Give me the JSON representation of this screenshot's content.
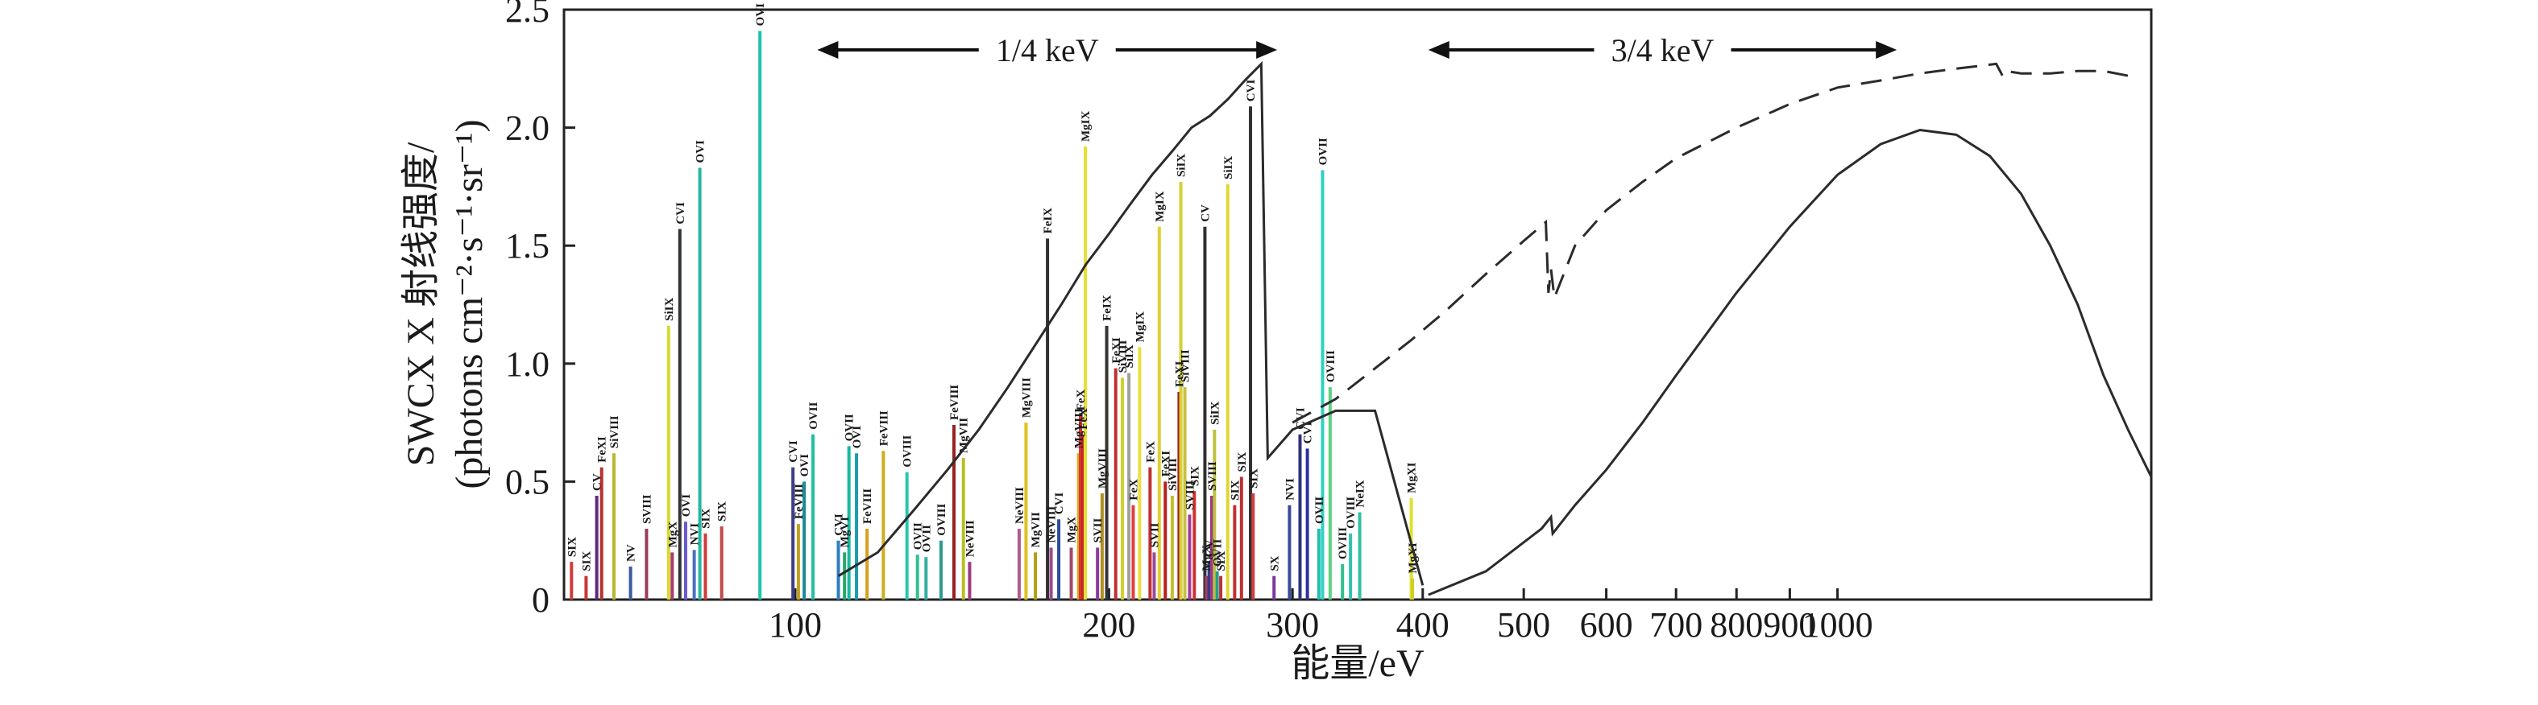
{
  "chart_data": {
    "type": "line",
    "xlabel": "能量/eV",
    "ylabel_line1": "SWCX X 射线强度/",
    "ylabel_line2": "(photons cm⁻²·s⁻¹·sr⁻¹)",
    "x_scale": "log",
    "xlim": [
      60,
      2000
    ],
    "ylim": [
      0,
      2.5
    ],
    "x_ticks": [
      100,
      200,
      300,
      400,
      500,
      600,
      700,
      800,
      900,
      1000
    ],
    "x_tick_labels": [
      "100",
      "200",
      "300",
      "400",
      "500",
      "600",
      "700",
      "800",
      "900",
      "1000"
    ],
    "y_ticks": [
      0,
      0.5,
      1.0,
      1.5,
      2.0,
      2.5
    ],
    "y_tick_labels": [
      "0",
      "0.5",
      "1.0",
      "1.5",
      "2.0",
      "2.5"
    ],
    "bands": [
      {
        "label": "1/4 keV",
        "range": [
          105,
          290
        ]
      },
      {
        "label": "3/4 keV",
        "range": [
          405,
          1140
        ]
      }
    ],
    "curves": [
      {
        "style": "solid",
        "points": [
          [
            110,
            0.1
          ],
          [
            120,
            0.2
          ],
          [
            130,
            0.38
          ],
          [
            140,
            0.55
          ],
          [
            150,
            0.72
          ],
          [
            160,
            0.9
          ],
          [
            170,
            1.08
          ],
          [
            180,
            1.25
          ],
          [
            190,
            1.42
          ],
          [
            200,
            1.55
          ],
          [
            210,
            1.68
          ],
          [
            220,
            1.8
          ],
          [
            230,
            1.9
          ],
          [
            240,
            2.0
          ],
          [
            250,
            2.05
          ],
          [
            260,
            2.12
          ],
          [
            270,
            2.2
          ],
          [
            280,
            2.27
          ],
          [
            284,
            0.6
          ],
          [
            300,
            0.72
          ],
          [
            330,
            0.8
          ],
          [
            360,
            0.8
          ],
          [
            400,
            0.06
          ]
        ]
      },
      {
        "style": "solid",
        "points": [
          [
            405,
            0.02
          ],
          [
            460,
            0.12
          ],
          [
            520,
            0.3
          ],
          [
            531,
            0.35
          ],
          [
            533,
            0.28
          ],
          [
            560,
            0.4
          ],
          [
            600,
            0.55
          ],
          [
            650,
            0.75
          ],
          [
            700,
            0.95
          ],
          [
            800,
            1.3
          ],
          [
            900,
            1.58
          ],
          [
            1000,
            1.8
          ],
          [
            1100,
            1.93
          ],
          [
            1200,
            1.99
          ],
          [
            1300,
            1.97
          ],
          [
            1400,
            1.88
          ],
          [
            1500,
            1.72
          ],
          [
            1600,
            1.5
          ],
          [
            1700,
            1.25
          ],
          [
            1800,
            0.95
          ],
          [
            1900,
            0.72
          ],
          [
            2000,
            0.52
          ]
        ]
      },
      {
        "style": "dashed",
        "points": [
          [
            300,
            0.75
          ],
          [
            330,
            0.85
          ],
          [
            360,
            0.98
          ],
          [
            390,
            1.1
          ],
          [
            420,
            1.22
          ],
          [
            460,
            1.38
          ],
          [
            500,
            1.52
          ],
          [
            525,
            1.6
          ],
          [
            528,
            1.3
          ],
          [
            531,
            1.4
          ],
          [
            535,
            1.28
          ],
          [
            560,
            1.5
          ],
          [
            600,
            1.65
          ],
          [
            650,
            1.77
          ],
          [
            700,
            1.87
          ],
          [
            800,
            2.0
          ],
          [
            900,
            2.1
          ],
          [
            1000,
            2.17
          ],
          [
            1100,
            2.2
          ],
          [
            1200,
            2.23
          ],
          [
            1300,
            2.25
          ],
          [
            1420,
            2.27
          ],
          [
            1440,
            2.22
          ],
          [
            1450,
            2.24
          ],
          [
            1500,
            2.23
          ],
          [
            1600,
            2.23
          ],
          [
            1700,
            2.24
          ],
          [
            1800,
            2.24
          ],
          [
            1900,
            2.22
          ]
        ]
      }
    ],
    "lines": [
      {
        "label": "SIX",
        "x": 61.0,
        "y": 0.16,
        "color": "#d43a3a"
      },
      {
        "label": "SIX",
        "x": 63.0,
        "y": 0.1,
        "color": "#cc3333"
      },
      {
        "label": "CV",
        "x": 64.5,
        "y": 0.44,
        "color": "#5a2c7c"
      },
      {
        "label": "FeXI",
        "x": 65.2,
        "y": 0.56,
        "color": "#b83030"
      },
      {
        "label": "SiVIII",
        "x": 67.0,
        "y": 0.62,
        "color": "#b8b830"
      },
      {
        "label": "NV",
        "x": 69.5,
        "y": 0.14,
        "color": "#3a5a9c"
      },
      {
        "label": "SVIII",
        "x": 72.0,
        "y": 0.3,
        "color": "#9c3a5c"
      },
      {
        "label": "SiIX",
        "x": 75.6,
        "y": 1.16,
        "color": "#d8d830"
      },
      {
        "label": "MgX",
        "x": 76.2,
        "y": 0.2,
        "color": "#a63c6c"
      },
      {
        "label": "CVI",
        "x": 77.5,
        "y": 1.57,
        "color": "#333333"
      },
      {
        "label": "OVI",
        "x": 78.5,
        "y": 0.33,
        "color": "#6a5acd"
      },
      {
        "label": "NVI",
        "x": 80.0,
        "y": 0.21,
        "color": "#4b6fc1"
      },
      {
        "label": "OVI",
        "x": 81.0,
        "y": 1.83,
        "color": "#22b8a0"
      },
      {
        "label": "SIX",
        "x": 82.0,
        "y": 0.28,
        "color": "#d03a3a"
      },
      {
        "label": "SIX",
        "x": 85.0,
        "y": 0.31,
        "color": "#c24a4a"
      },
      {
        "label": "OVI",
        "x": 92.5,
        "y": 2.41,
        "color": "#1dc4a8"
      },
      {
        "label": "CVI",
        "x": 99.5,
        "y": 0.56,
        "color": "#3d3d8a"
      },
      {
        "label": "FeVIII",
        "x": 100.7,
        "y": 0.32,
        "color": "#c0a020"
      },
      {
        "label": "OVI",
        "x": 102.0,
        "y": 0.5,
        "color": "#1a8a9a"
      },
      {
        "label": "OVII",
        "x": 104.0,
        "y": 0.7,
        "color": "#20c0a0"
      },
      {
        "label": "CVI",
        "x": 110.0,
        "y": 0.25,
        "color": "#2d7dc2"
      },
      {
        "label": "MgVI",
        "x": 111.5,
        "y": 0.2,
        "color": "#2da66a"
      },
      {
        "label": "OVII",
        "x": 112.6,
        "y": 0.65,
        "color": "#18b8a0"
      },
      {
        "label": "OVI",
        "x": 114.5,
        "y": 0.62,
        "color": "#1a9cb0"
      },
      {
        "label": "FeVIII",
        "x": 117.2,
        "y": 0.3,
        "color": "#d8a020"
      },
      {
        "label": "FeVIII",
        "x": 121.5,
        "y": 0.63,
        "color": "#c8b020"
      },
      {
        "label": "OVIII",
        "x": 128.0,
        "y": 0.54,
        "color": "#26c6b0"
      },
      {
        "label": "OVII",
        "x": 131.0,
        "y": 0.19,
        "color": "#30c090"
      },
      {
        "label": "OVII",
        "x": 133.5,
        "y": 0.18,
        "color": "#30b0a0"
      },
      {
        "label": "OVIII",
        "x": 138.0,
        "y": 0.25,
        "color": "#2a9a90"
      },
      {
        "label": "FeVIII",
        "x": 142.0,
        "y": 0.74,
        "color": "#9a2020"
      },
      {
        "label": "MgVII",
        "x": 145.0,
        "y": 0.6,
        "color": "#b8c020"
      },
      {
        "label": "NeVIII",
        "x": 147.0,
        "y": 0.16,
        "color": "#a03a80"
      },
      {
        "label": "NeVIII",
        "x": 164.0,
        "y": 0.3,
        "color": "#b05a90"
      },
      {
        "label": "MgVIII",
        "x": 166.5,
        "y": 0.75,
        "color": "#e0c020"
      },
      {
        "label": "MgVII",
        "x": 170.0,
        "y": 0.2,
        "color": "#b0a010"
      },
      {
        "label": "FeIX",
        "x": 174.6,
        "y": 1.53,
        "color": "#303030"
      },
      {
        "label": "NeVIII",
        "x": 176.0,
        "y": 0.22,
        "color": "#9a4a8a"
      },
      {
        "label": "CVI",
        "x": 179.0,
        "y": 0.34,
        "color": "#2c4c9c"
      },
      {
        "label": "MgX",
        "x": 184.0,
        "y": 0.22,
        "color": "#a04a6a"
      },
      {
        "label": "MgVIII",
        "x": 187.0,
        "y": 0.62,
        "color": "#d0b020"
      },
      {
        "label": "FeX",
        "x": 187.8,
        "y": 0.78,
        "color": "#e03030"
      },
      {
        "label": "FeX",
        "x": 188.8,
        "y": 0.7,
        "color": "#c02828"
      },
      {
        "label": "MgIX",
        "x": 189.8,
        "y": 1.92,
        "color": "#e8e030"
      },
      {
        "label": "SVII",
        "x": 195.0,
        "y": 0.22,
        "color": "#8a3a9a"
      },
      {
        "label": "MgVIII",
        "x": 197.0,
        "y": 0.45,
        "color": "#b09020"
      },
      {
        "label": "FeIX",
        "x": 199.0,
        "y": 1.16,
        "color": "#333333"
      },
      {
        "label": "FeXI",
        "x": 203.0,
        "y": 0.98,
        "color": "#c03030"
      },
      {
        "label": "SiVIII",
        "x": 206.0,
        "y": 0.94,
        "color": "#d0d030"
      },
      {
        "label": "SiIX",
        "x": 209.0,
        "y": 0.96,
        "color": "#a0a0a0"
      },
      {
        "label": "FeX",
        "x": 211.0,
        "y": 0.4,
        "color": "#e04040"
      },
      {
        "label": "MgIX",
        "x": 214.0,
        "y": 1.07,
        "color": "#e8e040"
      },
      {
        "label": "FeX",
        "x": 219.0,
        "y": 0.56,
        "color": "#c03030"
      },
      {
        "label": "SVII",
        "x": 221.0,
        "y": 0.2,
        "color": "#9a4a9a"
      },
      {
        "label": "MgIX",
        "x": 223.5,
        "y": 1.58,
        "color": "#e0d030"
      },
      {
        "label": "FeXI",
        "x": 226.5,
        "y": 0.5,
        "color": "#b82020"
      },
      {
        "label": "SiVIII",
        "x": 230.0,
        "y": 0.44,
        "color": "#c0c030"
      },
      {
        "label": "FeXI",
        "x": 233.5,
        "y": 0.88,
        "color": "#a02020"
      },
      {
        "label": "SiIX",
        "x": 234.4,
        "y": 1.77,
        "color": "#d8d030"
      },
      {
        "label": "SiVIII",
        "x": 236.5,
        "y": 0.9,
        "color": "#c8c040"
      },
      {
        "label": "SVIII",
        "x": 239.0,
        "y": 0.36,
        "color": "#a03a9a"
      },
      {
        "label": "SIX",
        "x": 241.5,
        "y": 0.46,
        "color": "#d03030"
      },
      {
        "label": "CV",
        "x": 247.2,
        "y": 1.58,
        "color": "#303030"
      },
      {
        "label": "MgX",
        "x": 248.0,
        "y": 0.1,
        "color": "#a04060"
      },
      {
        "label": "CV",
        "x": 249.5,
        "y": 0.16,
        "color": "#3a3a8a"
      },
      {
        "label": "SVIII",
        "x": 251.0,
        "y": 0.44,
        "color": "#9a3a8a"
      },
      {
        "label": "SiIX",
        "x": 252.5,
        "y": 0.72,
        "color": "#c0c040"
      },
      {
        "label": "OVII",
        "x": 254.0,
        "y": 0.12,
        "color": "#20a090"
      },
      {
        "label": "SIX",
        "x": 256.0,
        "y": 0.1,
        "color": "#c03030"
      },
      {
        "label": "SiIX",
        "x": 260.0,
        "y": 1.76,
        "color": "#e0d830"
      },
      {
        "label": "SIX",
        "x": 264.0,
        "y": 0.4,
        "color": "#c03030"
      },
      {
        "label": "SIX",
        "x": 268.0,
        "y": 0.52,
        "color": "#c03030"
      },
      {
        "label": "CVI",
        "x": 273.4,
        "y": 2.09,
        "color": "#303030"
      },
      {
        "label": "SIX",
        "x": 275.0,
        "y": 0.45,
        "color": "#d04040"
      },
      {
        "label": "SX",
        "x": 288.0,
        "y": 0.1,
        "color": "#7a3a9a"
      },
      {
        "label": "NVI",
        "x": 298.0,
        "y": 0.4,
        "color": "#3a4a9a"
      },
      {
        "label": "CVI",
        "x": 305.0,
        "y": 0.7,
        "color": "#303080"
      },
      {
        "label": "CVI",
        "x": 310.0,
        "y": 0.64,
        "color": "#3030a0"
      },
      {
        "label": "OVII",
        "x": 318.0,
        "y": 0.3,
        "color": "#20c0b0"
      },
      {
        "label": "OVII",
        "x": 320.6,
        "y": 1.82,
        "color": "#30d0c0"
      },
      {
        "label": "OVIII",
        "x": 326.0,
        "y": 0.9,
        "color": "#60d080"
      },
      {
        "label": "OVIII",
        "x": 335.0,
        "y": 0.15,
        "color": "#30c090"
      },
      {
        "label": "OVIII",
        "x": 341.0,
        "y": 0.28,
        "color": "#30c0b0"
      },
      {
        "label": "NeIX",
        "x": 348.0,
        "y": 0.37,
        "color": "#30c0a0"
      },
      {
        "label": "MgXI",
        "x": 390.0,
        "y": 0.43,
        "color": "#e0e030"
      },
      {
        "label": "MgXI",
        "x": 391.0,
        "y": 0.09,
        "color": "#d0d020"
      }
    ]
  }
}
